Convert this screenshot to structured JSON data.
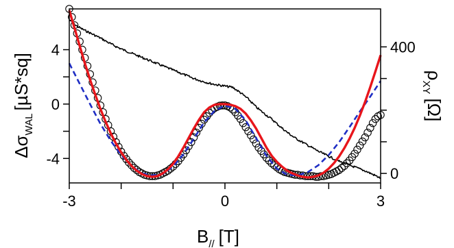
{
  "chart_data": {
    "type": "scatter",
    "title": "",
    "xlabel": {
      "main": "B",
      "sub": "//",
      "unit": "[T]"
    },
    "ylabel_left": {
      "main": "Δσ",
      "sub": "WAL",
      "unit": "[µS*sq]"
    },
    "ylabel_right": {
      "main": "ρ",
      "sub": "XY",
      "unit": "[Ω]"
    },
    "xlim": [
      -3.0,
      3.0
    ],
    "ylim_left": [
      -5.8,
      7.0
    ],
    "ylim_right": [
      -30,
      520
    ],
    "x_ticks": [
      {
        "v": -3,
        "label": "-3"
      },
      {
        "v": -2,
        "label": ""
      },
      {
        "v": -1,
        "label": ""
      },
      {
        "v": 0,
        "label": "0"
      },
      {
        "v": 1,
        "label": ""
      },
      {
        "v": 2,
        "label": ""
      },
      {
        "v": 3,
        "label": "3"
      }
    ],
    "y_ticks_left": [
      {
        "v": -4,
        "label": "-4"
      },
      {
        "v": -2,
        "label": ""
      },
      {
        "v": 0,
        "label": "0"
      },
      {
        "v": 2,
        "label": ""
      },
      {
        "v": 4,
        "label": "4"
      }
    ],
    "y_ticks_right": [
      {
        "v": 0,
        "label": "0"
      },
      {
        "v": 100,
        "label": ""
      },
      {
        "v": 200,
        "label": ""
      },
      {
        "v": 300,
        "label": ""
      },
      {
        "v": 400,
        "label": "400"
      }
    ],
    "grid": false,
    "legend": "none",
    "series": [
      {
        "role": "measured",
        "style": "open-circles",
        "axis": "left",
        "color": "#000000",
        "x": [
          -3.0,
          -2.95,
          -2.9,
          -2.85,
          -2.8,
          -2.75,
          -2.7,
          -2.65,
          -2.6,
          -2.55,
          -2.5,
          -2.45,
          -2.4,
          -2.35,
          -2.3,
          -2.25,
          -2.2,
          -2.15,
          -2.1,
          -2.05,
          -2.0,
          -1.95,
          -1.9,
          -1.85,
          -1.8,
          -1.75,
          -1.7,
          -1.65,
          -1.6,
          -1.55,
          -1.5,
          -1.45,
          -1.4,
          -1.35,
          -1.3,
          -1.25,
          -1.2,
          -1.15,
          -1.1,
          -1.05,
          -1.0,
          -0.95,
          -0.9,
          -0.85,
          -0.8,
          -0.75,
          -0.7,
          -0.65,
          -0.6,
          -0.55,
          -0.5,
          -0.45,
          -0.4,
          -0.35,
          -0.3,
          -0.25,
          -0.2,
          -0.15,
          -0.1,
          -0.05,
          0.0,
          0.05,
          0.1,
          0.15,
          0.2,
          0.25,
          0.3,
          0.35,
          0.4,
          0.45,
          0.5,
          0.55,
          0.6,
          0.65,
          0.7,
          0.75,
          0.8,
          0.85,
          0.9,
          0.95,
          1.0,
          1.05,
          1.1,
          1.15,
          1.2,
          1.25,
          1.3,
          1.35,
          1.4,
          1.45,
          1.5,
          1.55,
          1.6,
          1.65,
          1.7,
          1.75,
          1.8,
          1.85,
          1.9,
          1.95,
          2.0,
          2.05,
          2.1,
          2.15,
          2.2,
          2.25,
          2.3,
          2.35,
          2.4,
          2.45,
          2.5,
          2.55,
          2.6,
          2.65,
          2.7,
          2.75,
          2.8,
          2.85,
          2.9,
          2.95,
          3.0
        ],
        "y": [
          7.0,
          6.4,
          5.8,
          5.2,
          4.6,
          4.0,
          3.4,
          2.8,
          2.2,
          1.6,
          1.0,
          0.45,
          -0.1,
          -0.6,
          -1.1,
          -1.55,
          -2.0,
          -2.4,
          -2.8,
          -3.15,
          -3.5,
          -3.8,
          -4.05,
          -4.3,
          -4.5,
          -4.7,
          -4.85,
          -5.0,
          -5.1,
          -5.2,
          -5.25,
          -5.3,
          -5.3,
          -5.3,
          -5.25,
          -5.2,
          -5.1,
          -5.0,
          -4.9,
          -4.75,
          -4.6,
          -4.4,
          -4.2,
          -3.95,
          -3.7,
          -3.4,
          -3.1,
          -2.8,
          -2.45,
          -2.1,
          -1.75,
          -1.45,
          -1.15,
          -0.9,
          -0.65,
          -0.45,
          -0.3,
          -0.2,
          -0.12,
          -0.1,
          -0.1,
          -0.15,
          -0.25,
          -0.4,
          -0.6,
          -0.85,
          -1.1,
          -1.4,
          -1.7,
          -2.0,
          -2.3,
          -2.6,
          -2.9,
          -3.2,
          -3.45,
          -3.7,
          -3.95,
          -4.15,
          -4.35,
          -4.5,
          -4.65,
          -4.8,
          -4.9,
          -5.0,
          -5.05,
          -5.1,
          -5.15,
          -5.2,
          -5.2,
          -5.25,
          -5.25,
          -5.3,
          -5.3,
          -5.3,
          -5.3,
          -5.35,
          -5.35,
          -5.3,
          -5.3,
          -5.25,
          -5.2,
          -5.15,
          -5.05,
          -4.95,
          -4.85,
          -4.7,
          -4.55,
          -4.35,
          -4.15,
          -3.9,
          -3.65,
          -3.35,
          -3.05,
          -2.75,
          -2.45,
          -2.1,
          -1.75,
          -1.4,
          -1.1,
          -0.9,
          -0.8
        ]
      },
      {
        "role": "fit",
        "style": "solid-line",
        "axis": "left",
        "color": "#e8151b",
        "x": [
          -3.0,
          -2.9,
          -2.8,
          -2.7,
          -2.6,
          -2.5,
          -2.4,
          -2.3,
          -2.2,
          -2.1,
          -2.0,
          -1.9,
          -1.8,
          -1.7,
          -1.6,
          -1.5,
          -1.4,
          -1.3,
          -1.2,
          -1.1,
          -1.0,
          -0.9,
          -0.8,
          -0.7,
          -0.6,
          -0.5,
          -0.4,
          -0.3,
          -0.2,
          -0.1,
          0.0,
          0.1,
          0.2,
          0.3,
          0.4,
          0.5,
          0.6,
          0.7,
          0.8,
          0.9,
          1.0,
          1.1,
          1.2,
          1.3,
          1.4,
          1.5,
          1.6,
          1.7,
          1.8,
          1.9,
          2.0,
          2.1,
          2.2,
          2.3,
          2.4,
          2.5,
          2.6,
          2.7,
          2.8,
          2.9,
          3.0
        ],
        "y": [
          6.9,
          5.6,
          4.3,
          3.0,
          1.8,
          0.7,
          -0.35,
          -1.3,
          -2.15,
          -2.9,
          -3.55,
          -4.1,
          -4.55,
          -4.9,
          -5.15,
          -5.3,
          -5.35,
          -5.3,
          -5.1,
          -4.8,
          -4.4,
          -3.85,
          -3.2,
          -2.5,
          -1.8,
          -1.15,
          -0.6,
          -0.25,
          -0.05,
          0.0,
          0.0,
          -0.05,
          -0.15,
          -0.35,
          -0.7,
          -1.2,
          -1.8,
          -2.5,
          -3.2,
          -3.8,
          -4.25,
          -4.6,
          -4.9,
          -5.1,
          -5.25,
          -5.35,
          -5.4,
          -5.35,
          -5.25,
          -5.05,
          -4.75,
          -4.35,
          -3.85,
          -3.25,
          -2.55,
          -1.75,
          -0.85,
          0.15,
          1.25,
          2.4,
          3.6
        ]
      },
      {
        "role": "model",
        "style": "dashed-line",
        "axis": "left",
        "color": "#1f2ec4",
        "x": [
          -3.0,
          -2.8,
          -2.6,
          -2.4,
          -2.2,
          -2.0,
          -1.8,
          -1.6,
          -1.4,
          -1.2,
          -1.0,
          -0.8,
          -0.6,
          -0.4,
          -0.2,
          0.0,
          0.2,
          0.4,
          0.6,
          0.8,
          1.0,
          1.2,
          1.4,
          1.6,
          1.8,
          2.0,
          2.2,
          2.4,
          2.6,
          2.8,
          3.0
        ],
        "y": [
          3.0,
          1.5,
          0.0,
          -1.45,
          -2.7,
          -3.75,
          -4.55,
          -5.1,
          -5.25,
          -5.15,
          -4.6,
          -3.7,
          -2.55,
          -1.35,
          -0.5,
          -0.1,
          -0.35,
          -1.2,
          -2.5,
          -3.8,
          -4.75,
          -5.2,
          -5.25,
          -5.0,
          -4.5,
          -3.75,
          -2.8,
          -1.7,
          -0.55,
          0.55,
          1.7
        ]
      },
      {
        "role": "hall",
        "style": "noisy-line",
        "axis": "right",
        "color": "#000000",
        "x": [
          -3.0,
          -2.85,
          -2.7,
          -2.55,
          -2.4,
          -2.25,
          -2.1,
          -1.95,
          -1.8,
          -1.65,
          -1.5,
          -1.35,
          -1.2,
          -1.05,
          -0.9,
          -0.75,
          -0.6,
          -0.45,
          -0.3,
          -0.15,
          0.0,
          0.15,
          0.3,
          0.45,
          0.6,
          0.75,
          0.9,
          1.05,
          1.2,
          1.35,
          1.5,
          1.65,
          1.8,
          1.95,
          2.1,
          2.25,
          2.4,
          2.55,
          2.7,
          2.85,
          3.0
        ],
        "y": [
          485,
          465,
          452,
          440,
          428,
          414,
          401,
          390,
          380,
          370,
          360,
          350,
          340,
          330,
          320,
          310,
          300,
          292,
          285,
          280,
          276,
          272,
          255,
          235,
          210,
          190,
          172,
          150,
          130,
          112,
          98,
          84,
          70,
          58,
          46,
          35,
          26,
          17,
          8,
          -3,
          -15
        ]
      }
    ]
  }
}
